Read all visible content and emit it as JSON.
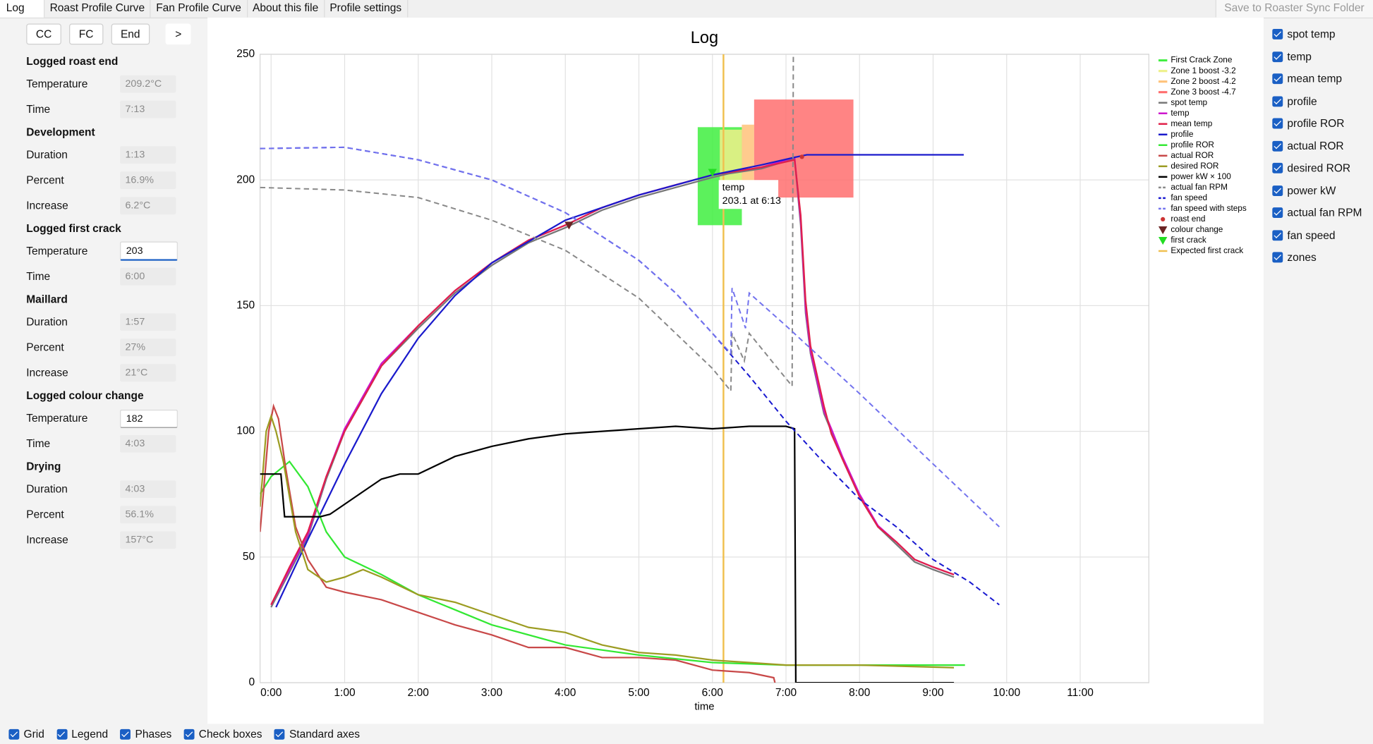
{
  "tabs": [
    "Log",
    "Roast Profile Curve",
    "Fan Profile Curve",
    "About this file",
    "Profile settings"
  ],
  "sync_button": "Save to Roaster Sync Folder",
  "buttons": [
    "CC",
    "FC",
    "End",
    ">"
  ],
  "sections": [
    {
      "title": "Logged roast end",
      "fields": [
        {
          "label": "Temperature",
          "value": "209.2°C"
        },
        {
          "label": "Time",
          "value": "7:13"
        }
      ]
    },
    {
      "title": "Development",
      "fields": [
        {
          "label": "Duration",
          "value": "1:13"
        },
        {
          "label": "Percent",
          "value": "16.9%"
        },
        {
          "label": "Increase",
          "value": "6.2°C"
        }
      ]
    },
    {
      "title": "Logged first crack",
      "fields": [
        {
          "label": "Temperature",
          "value": "203",
          "editable": true,
          "focused": true
        },
        {
          "label": "Time",
          "value": "6:00"
        }
      ]
    },
    {
      "title": "Maillard",
      "fields": [
        {
          "label": "Duration",
          "value": "1:57"
        },
        {
          "label": "Percent",
          "value": "27%"
        },
        {
          "label": "Increase",
          "value": "21°C"
        }
      ]
    },
    {
      "title": "Logged colour change",
      "fields": [
        {
          "label": "Temperature",
          "value": "182",
          "editable": true
        },
        {
          "label": "Time",
          "value": "4:03"
        }
      ]
    },
    {
      "title": "Drying",
      "fields": [
        {
          "label": "Duration",
          "value": "4:03"
        },
        {
          "label": "Percent",
          "value": "56.1%"
        },
        {
          "label": "Increase",
          "value": "157°C"
        }
      ]
    }
  ],
  "series_checkboxes": [
    "spot temp",
    "temp",
    "mean temp",
    "profile",
    "profile ROR",
    "actual ROR",
    "desired ROR",
    "power kW",
    "actual fan RPM",
    "fan speed",
    "zones"
  ],
  "view_checkboxes": [
    "Grid",
    "Legend",
    "Phases",
    "Check boxes",
    "Standard axes"
  ],
  "chart_data": {
    "type": "line",
    "title": "Log",
    "x_label": "time",
    "xlim": [
      -9,
      716
    ],
    "ylim": [
      0,
      250
    ],
    "xticks": [
      {
        "value": 0,
        "label": "0:00"
      },
      {
        "value": 60,
        "label": "1:00"
      },
      {
        "value": 120,
        "label": "2:00"
      },
      {
        "value": 180,
        "label": "3:00"
      },
      {
        "value": 240,
        "label": "4:00"
      },
      {
        "value": 300,
        "label": "5:00"
      },
      {
        "value": 360,
        "label": "6:00"
      },
      {
        "value": 420,
        "label": "7:00"
      },
      {
        "value": 480,
        "label": "8:00"
      },
      {
        "value": 540,
        "label": "9:00"
      },
      {
        "value": 600,
        "label": "10:00"
      },
      {
        "value": 660,
        "label": "11:00"
      }
    ],
    "yticks": [
      0,
      50,
      100,
      150,
      200,
      250
    ],
    "grid": true,
    "legend": "right",
    "zones": [
      {
        "name": "First Crack Zone",
        "color": "#3fee3f",
        "x": [
          348,
          384
        ],
        "y": [
          182,
          221
        ]
      },
      {
        "name": "Zone 1 boost -3.2",
        "color": "#eef08a",
        "x": [
          366,
          384
        ],
        "y": [
          190,
          220
        ]
      },
      {
        "name": "Zone 2 boost -4.2",
        "color": "#ffc27a",
        "x": [
          384,
          394
        ],
        "y": [
          196,
          222
        ]
      },
      {
        "name": "Zone 3 boost -4.7",
        "color": "#ff6e6e",
        "x": [
          394,
          475
        ],
        "y": [
          193,
          232
        ]
      }
    ],
    "series": [
      {
        "name": "spot temp",
        "color": "#777777",
        "x": [
          0,
          15,
          30,
          45,
          60,
          90,
          120,
          150,
          180,
          210,
          240,
          270,
          300,
          330,
          360,
          373,
          400,
          427,
          432,
          436,
          440,
          451,
          457,
          466,
          480,
          495,
          510,
          525,
          540,
          557
        ],
        "values": [
          30,
          44,
          58,
          81,
          100,
          126,
          141,
          155,
          166,
          175,
          181,
          188,
          193,
          197,
          201,
          202.5,
          204.5,
          208.5,
          182,
          147,
          131,
          107,
          100,
          89,
          74,
          62,
          55,
          48,
          45,
          42
        ]
      },
      {
        "name": "temp",
        "color": "#cc14cc",
        "x": [
          0,
          15,
          30,
          45,
          60,
          90,
          120,
          150,
          180,
          210,
          240,
          270,
          300,
          330,
          360,
          373,
          400,
          427,
          432,
          436,
          440,
          451,
          457,
          466,
          480,
          495,
          510,
          525,
          540,
          557
        ],
        "values": [
          31,
          45,
          59,
          82,
          101,
          127,
          142,
          156,
          167,
          176,
          182,
          189,
          194,
          198,
          202,
          203.1,
          205,
          209,
          184,
          149,
          132,
          108,
          101,
          90,
          75,
          62.5,
          56,
          49,
          46,
          43
        ]
      },
      {
        "name": "mean temp",
        "color": "#e0204a",
        "x": [
          0,
          15,
          30,
          45,
          60,
          90,
          120,
          150,
          180,
          210,
          240,
          270,
          300,
          330,
          360,
          373,
          400,
          427,
          432,
          436,
          440,
          451,
          457,
          466,
          480,
          495,
          510,
          525,
          540,
          557
        ],
        "values": [
          31,
          46,
          60,
          82,
          100,
          126,
          142,
          156,
          167,
          176,
          182,
          189,
          194,
          198,
          202,
          203,
          205,
          208,
          186,
          152,
          134,
          110,
          99,
          89,
          74,
          62,
          56,
          49,
          46,
          43
        ]
      },
      {
        "name": "profile",
        "color": "#1a1acc",
        "x": [
          4,
          30,
          60,
          90,
          120,
          150,
          180,
          240,
          300,
          360,
          400,
          427,
          437,
          565
        ],
        "values": [
          30,
          57,
          87,
          115,
          137,
          154,
          167,
          184,
          194,
          202,
          206,
          209,
          210,
          210
        ]
      },
      {
        "name": "profile ROR",
        "color": "#33e833",
        "x": [
          -9,
          0,
          15,
          30,
          45,
          60,
          90,
          120,
          180,
          240,
          300,
          360,
          420,
          566
        ],
        "values": [
          75,
          82,
          88,
          78,
          60,
          50,
          43,
          35,
          23,
          15,
          11,
          8,
          7,
          7
        ]
      },
      {
        "name": "actual ROR",
        "color": "#c84848",
        "x": [
          -9,
          -2,
          2,
          6,
          12,
          20,
          30,
          45,
          60,
          90,
          120,
          150,
          180,
          210,
          240,
          270,
          300,
          330,
          360,
          390,
          410,
          411
        ],
        "values": [
          60,
          100,
          110,
          105,
          85,
          62,
          49,
          38,
          36,
          33,
          28,
          23,
          19,
          14,
          14,
          10,
          10,
          9,
          5,
          4,
          2,
          0
        ]
      },
      {
        "name": "desired ROR",
        "color": "#9c9c22",
        "x": [
          -9,
          -4,
          0,
          4,
          10,
          20,
          30,
          45,
          60,
          75,
          90,
          120,
          150,
          180,
          210,
          240,
          270,
          300,
          330,
          360,
          390,
          420,
          480,
          557
        ],
        "values": [
          70,
          100,
          106,
          100,
          88,
          60,
          45,
          40,
          42,
          45,
          42,
          35,
          32,
          27,
          22,
          20,
          15,
          12,
          11,
          9,
          8,
          7,
          7,
          6
        ]
      },
      {
        "name": "power kW × 100",
        "color": "#000000",
        "x": [
          -9,
          8,
          11,
          40,
          48,
          60,
          75,
          90,
          105,
          120,
          150,
          180,
          210,
          240,
          270,
          300,
          330,
          360,
          390,
          420,
          427,
          428,
          557
        ],
        "values": [
          83,
          83,
          66,
          66,
          67,
          71,
          76,
          81,
          83,
          83,
          90,
          94,
          97,
          99,
          100,
          101,
          102,
          101,
          102,
          102,
          101,
          0,
          0
        ]
      },
      {
        "name": "actual fan RPM",
        "color": "#888888",
        "dashed": true,
        "x": [
          -9,
          60,
          120,
          180,
          240,
          300,
          360,
          375,
          376,
          386,
          390,
          425,
          426
        ],
        "values": [
          197,
          196,
          193,
          184,
          172,
          153,
          125,
          116,
          139,
          128,
          139,
          118,
          250
        ]
      },
      {
        "name": "fan speed",
        "color": "#1818d0",
        "dashed": true,
        "x": [
          -9,
          60,
          120,
          180,
          240,
          300,
          330,
          360,
          390,
          420,
          450,
          480,
          510,
          540,
          570,
          594
        ],
        "values": [
          212.5,
          213,
          208,
          200,
          187,
          168,
          155,
          139,
          122,
          104,
          88,
          73,
          62,
          49,
          40,
          31
        ]
      },
      {
        "name": "fan speed with steps",
        "color": "#7272ee",
        "dashed": true,
        "x": [
          -9,
          60,
          120,
          180,
          240,
          300,
          330,
          360,
          375,
          376,
          387,
          390,
          420,
          480,
          540,
          594
        ],
        "values": [
          212.5,
          213,
          208,
          200,
          187,
          168,
          155,
          139,
          131,
          157,
          141,
          155,
          142,
          115,
          87,
          62
        ]
      }
    ],
    "markers": [
      {
        "name": "roast end",
        "color": "#cc3333",
        "shape": "dot",
        "x": [
          433
        ],
        "values": [
          209.2
        ]
      },
      {
        "name": "colour change",
        "color": "#6b2424",
        "shape": "triangle",
        "x": [
          243
        ],
        "values": [
          182
        ]
      },
      {
        "name": "first crack",
        "color": "#22dd22",
        "shape": "triangle",
        "x": [
          360
        ],
        "values": [
          203
        ]
      }
    ],
    "vlines": [
      {
        "name": "Expected first crack",
        "color": "#f0c050",
        "x": 369
      }
    ],
    "annotation": {
      "x": 373,
      "y": 203.1,
      "text": [
        "temp",
        "203.1 at 6:13"
      ]
    }
  }
}
